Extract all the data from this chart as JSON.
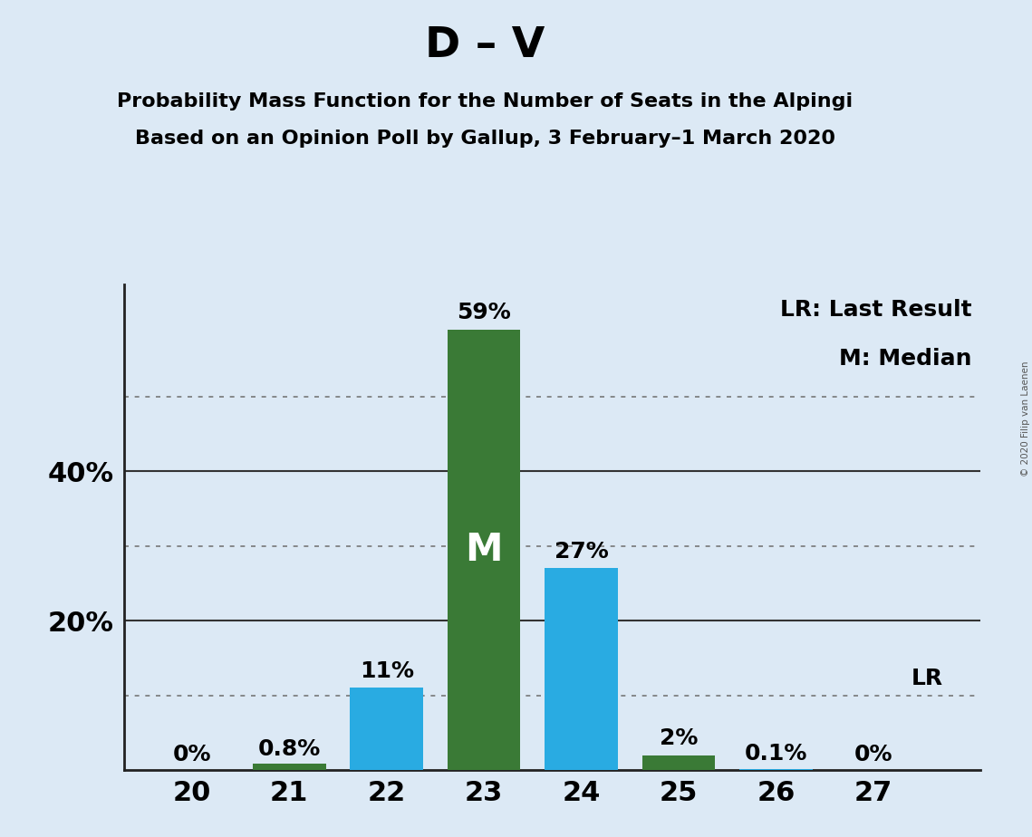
{
  "title": "D – V",
  "subtitle1": "Probability Mass Function for the Number of Seats in the Alpingi",
  "subtitle2": "Based on an Opinion Poll by Gallup, 3 February–1 March 2020",
  "seats": [
    20,
    21,
    22,
    23,
    24,
    25,
    26,
    27
  ],
  "values": [
    0.0,
    0.8,
    11.0,
    59.0,
    27.0,
    2.0,
    0.1,
    0.0
  ],
  "bar_colors": [
    "#29ABE2",
    "#3A7A36",
    "#29ABE2",
    "#3A7A36",
    "#29ABE2",
    "#3A7A36",
    "#29ABE2",
    "#29ABE2"
  ],
  "labels": [
    "0%",
    "0.8%",
    "11%",
    "59%",
    "27%",
    "2%",
    "0.1%",
    "0%"
  ],
  "median_seat": 23,
  "lr_seat": 27,
  "background_color": "#DCE9F5",
  "ytick_labels_shown": [
    "20%",
    "40%"
  ],
  "ytick_vals_shown": [
    20,
    40
  ],
  "dotted_lines": [
    10,
    30,
    50
  ],
  "solid_lines": [
    20,
    40
  ],
  "legend_text1": "LR: Last Result",
  "legend_text2": "M: Median",
  "watermark": "© 2020 Filip van Laenen",
  "title_fontsize": 34,
  "subtitle_fontsize": 16,
  "label_fontsize": 18,
  "axis_tick_fontsize": 22,
  "legend_fontsize": 18,
  "ylim": [
    0,
    65
  ],
  "xlim_left": 19.3,
  "xlim_right": 28.1,
  "bar_width": 0.75
}
